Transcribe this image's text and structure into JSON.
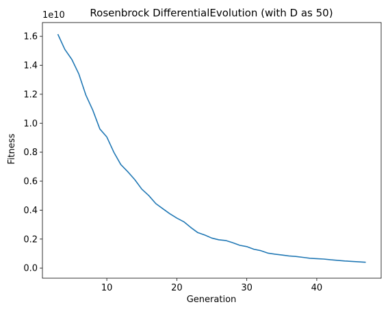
{
  "chart_data": {
    "type": "line",
    "title": "Rosenbrock DifferentialEvolution  (with D as 50)",
    "xlabel": "Generation",
    "ylabel": "Fitness",
    "y_offset_label": "1e10",
    "xlim": [
      0.8,
      49.2
    ],
    "ylim": [
      -0.07,
      1.695
    ],
    "xticks": [
      10,
      20,
      30,
      40
    ],
    "yticks": [
      0.0,
      0.2,
      0.4,
      0.6,
      0.8,
      1.0,
      1.2,
      1.4,
      1.6
    ],
    "ytick_labels": [
      "0.0",
      "0.2",
      "0.4",
      "0.6",
      "0.8",
      "1.0",
      "1.2",
      "1.4",
      "1.6"
    ],
    "grid": false,
    "series": [
      {
        "color": "#1f77b4",
        "x": [
          3,
          4,
          5,
          6,
          7,
          8,
          9,
          10,
          11,
          12,
          13,
          14,
          15,
          16,
          17,
          18,
          19,
          20,
          21,
          22,
          23,
          24,
          25,
          26,
          27,
          28,
          29,
          30,
          31,
          32,
          33,
          34,
          35,
          36,
          37,
          38,
          39,
          40,
          41,
          42,
          43,
          44,
          45,
          46,
          47
        ],
        "y": [
          1.615,
          1.51,
          1.44,
          1.34,
          1.195,
          1.09,
          0.96,
          0.905,
          0.8,
          0.715,
          0.665,
          0.61,
          0.545,
          0.5,
          0.445,
          0.41,
          0.375,
          0.345,
          0.32,
          0.28,
          0.245,
          0.228,
          0.207,
          0.195,
          0.19,
          0.175,
          0.157,
          0.148,
          0.13,
          0.12,
          0.103,
          0.096,
          0.09,
          0.084,
          0.08,
          0.074,
          0.068,
          0.065,
          0.062,
          0.057,
          0.053,
          0.049,
          0.046,
          0.043,
          0.04
        ]
      }
    ]
  }
}
